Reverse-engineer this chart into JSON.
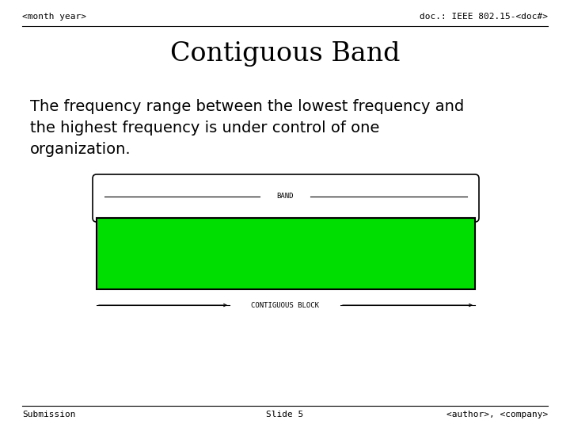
{
  "background_color": "#ffffff",
  "header_left": "<month year>",
  "header_right": "doc.: IEEE 802.15-<doc#>",
  "title": "Contiguous Band",
  "body_text": "The frequency range between the lowest frequency and\nthe highest frequency is under control of one\norganization.",
  "band_label": "BAND",
  "block_label": "CONTIGUOUS BLOCK",
  "footer_left": "Submission",
  "footer_center": "Slide 5",
  "footer_right": "<author>, <company>",
  "green_color": "#00dd00",
  "black_color": "#000000",
  "header_fontsize": 8,
  "title_fontsize": 24,
  "body_fontsize": 14,
  "diagram_label_fontsize": 6.5,
  "footer_fontsize": 8
}
